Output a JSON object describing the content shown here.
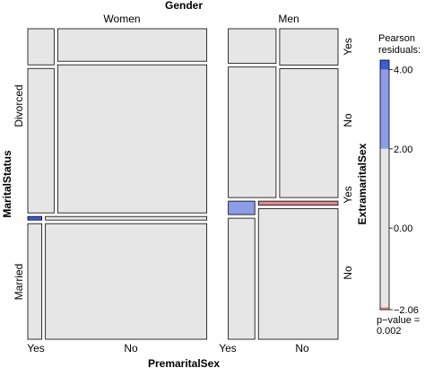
{
  "chart_data": {
    "type": "mosaic",
    "variables": {
      "column": {
        "name": "Gender",
        "levels": [
          "Women",
          "Men"
        ]
      },
      "row": {
        "name": "MaritalStatus",
        "levels": [
          "Divorced",
          "Married"
        ]
      },
      "inner_column": {
        "name": "PremaritalSex",
        "levels": [
          "Yes",
          "No"
        ]
      },
      "inner_row": {
        "name": "ExtramaritalSex",
        "levels": [
          "Yes",
          "No"
        ]
      }
    },
    "proportions": {
      "gender": [
        0.62,
        0.38
      ],
      "marital_given_gender": {
        "Women": [
          0.6,
          0.4
        ],
        "Men": [
          0.55,
          0.45
        ]
      },
      "premarital_given_gender_marital": {
        "Women|Divorced": [
          0.15,
          0.85
        ],
        "Women|Married": [
          0.08,
          0.92
        ],
        "Men|Divorced": [
          0.45,
          0.55
        ],
        "Men|Married": [
          0.25,
          0.75
        ]
      },
      "extramarital_yes_share": {
        "Women|Divorced|Yes": 0.2,
        "Women|Divorced|No": 0.18,
        "Women|Married|Yes": 0.03,
        "Women|Married|No": 0.03,
        "Men|Divorced|Yes": 0.21,
        "Men|Divorced|No": 0.22,
        "Men|Married|Yes": 0.1,
        "Men|Married|No": 0.03
      }
    },
    "residual_colors": {
      "Women|Married|Yes|Yes": "#3f5bd6",
      "Women|Married|No|Yes": "#e6e6e6",
      "Men|Married|Yes|Yes": "#8e9be6",
      "Men|Married|No|Yes": "#e08a93"
    },
    "default_tile_color": "#e6e6e6",
    "legend": {
      "title_line1": "Pearson",
      "title_line2": "residuals:",
      "ticks": [
        "4.00",
        "2.00",
        "0.00",
        "−2.06"
      ],
      "tick_values": [
        4.0,
        2.0,
        0.0,
        -2.06
      ],
      "range": [
        -2.06,
        4.24
      ],
      "color_bands": [
        {
          "from": 4.0,
          "to": 4.24,
          "color": "#3f5bd6"
        },
        {
          "from": 2.0,
          "to": 4.0,
          "color": "#8e9be6"
        },
        {
          "from": -2.0,
          "to": 2.0,
          "color": "#e6e6e6"
        },
        {
          "from": -2.06,
          "to": -2.0,
          "color": "#e08a93"
        }
      ],
      "pvalue_line1": "p−value =",
      "pvalue_line2": "0.002"
    }
  }
}
